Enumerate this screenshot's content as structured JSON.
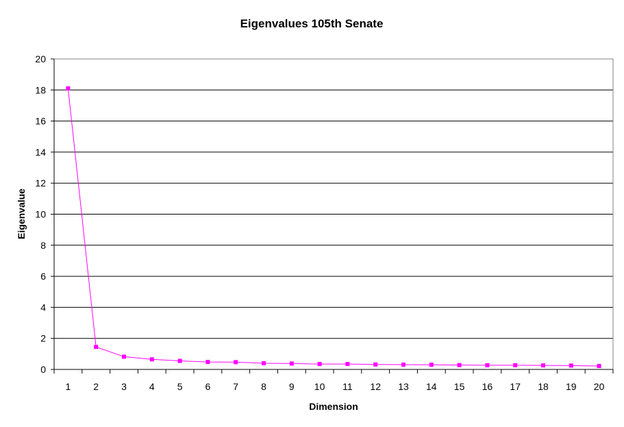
{
  "chart_data": {
    "type": "line",
    "title": "Eigenvalues 105th Senate",
    "xlabel": "Dimension",
    "ylabel": "Eigenvalue",
    "x": [
      1,
      2,
      3,
      4,
      5,
      6,
      7,
      8,
      9,
      10,
      11,
      12,
      13,
      14,
      15,
      16,
      17,
      18,
      19,
      20
    ],
    "x_tick_labels": [
      "1",
      "2",
      "3",
      "4",
      "5",
      "6",
      "7",
      "8",
      "9",
      "10",
      "11",
      "12",
      "13",
      "14",
      "15",
      "16",
      "17",
      "18",
      "19",
      "20"
    ],
    "y_tick_labels": [
      "0",
      "2",
      "4",
      "6",
      "8",
      "10",
      "12",
      "14",
      "16",
      "18",
      "20"
    ],
    "ylim": [
      0,
      20
    ],
    "y_step": 2,
    "grid": true,
    "legend": false,
    "series": [
      {
        "values": [
          18.1,
          1.45,
          0.82,
          0.65,
          0.55,
          0.48,
          0.47,
          0.4,
          0.38,
          0.35,
          0.35,
          0.32,
          0.31,
          0.3,
          0.28,
          0.27,
          0.27,
          0.26,
          0.25,
          0.22
        ],
        "color": "#ff00ff"
      }
    ]
  }
}
